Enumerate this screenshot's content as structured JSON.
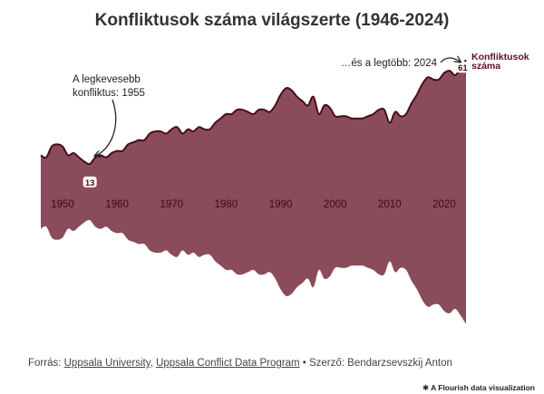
{
  "title": "Konfliktusok száma világszerte (1946-2024)",
  "source": {
    "prefix": "Forrás: ",
    "link1": "Uppsala University",
    "sep1": ", ",
    "link2": "Uppsala Conflict Data Program",
    "mid": " • Szerző: ",
    "author": "Bendarzsevszkij Anton"
  },
  "credit": "A Flourish data visualization",
  "colors": {
    "fill": "#8a4b5b",
    "line": "#4a0b1e",
    "label": "#5a1227",
    "annotation": "#222222"
  },
  "chart_data": {
    "type": "area",
    "style": "streamgraph (symmetric around center)",
    "series": [
      {
        "name": "Konfliktusok\nszáma",
        "x": [
          1946,
          1947,
          1948,
          1949,
          1950,
          1951,
          1952,
          1953,
          1954,
          1955,
          1956,
          1957,
          1958,
          1959,
          1960,
          1961,
          1962,
          1963,
          1964,
          1965,
          1966,
          1967,
          1968,
          1969,
          1970,
          1971,
          1972,
          1973,
          1974,
          1975,
          1976,
          1977,
          1978,
          1979,
          1980,
          1981,
          1982,
          1983,
          1984,
          1985,
          1986,
          1987,
          1988,
          1989,
          1990,
          1991,
          1992,
          1993,
          1994,
          1995,
          1996,
          1997,
          1998,
          1999,
          2000,
          2001,
          2002,
          2003,
          2004,
          2005,
          2006,
          2007,
          2008,
          2009,
          2010,
          2011,
          2012,
          2013,
          2014,
          2015,
          2016,
          2017,
          2018,
          2019,
          2020,
          2021,
          2022,
          2023,
          2024
        ],
        "values": [
          17,
          16,
          21,
          22,
          21,
          17,
          18,
          16,
          14,
          13,
          16,
          17,
          16,
          18,
          19,
          19,
          22,
          23,
          24,
          24,
          27,
          28,
          28,
          27,
          29,
          30,
          27,
          29,
          28,
          30,
          29,
          29,
          32,
          34,
          36,
          36,
          38,
          38,
          37,
          36,
          38,
          38,
          37,
          40,
          45,
          48,
          47,
          44,
          42,
          40,
          44,
          36,
          40,
          39,
          35,
          35,
          35,
          34,
          34,
          34,
          35,
          36,
          38,
          38,
          32,
          37,
          35,
          36,
          41,
          45,
          50,
          53,
          52,
          52,
          55,
          56,
          54,
          57,
          61
        ]
      }
    ],
    "annotations": [
      {
        "text": "A legkevesebb\nkonfliktus: 1955",
        "x": 1955,
        "value": 13
      },
      {
        "text": "…és a legtöbb: 2024",
        "x": 2024,
        "value": 61
      }
    ],
    "xticks": [
      1950,
      1960,
      1970,
      1980,
      1990,
      2000,
      2010,
      2020
    ],
    "grid": false,
    "legend": "none"
  }
}
